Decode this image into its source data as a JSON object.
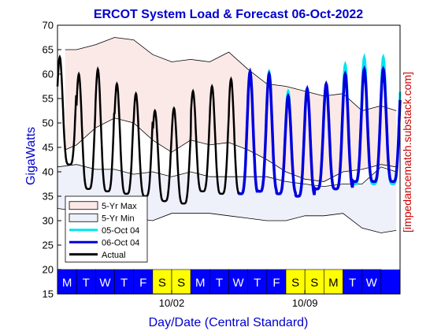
{
  "chart_data": {
    "type": "line",
    "title": "ERCOT System Load & Forecast 06-Oct-2022",
    "xlabel": "Day/Date (Central Standard)",
    "ylabel": "GigaWatts",
    "side_label": "[impedancematch.substack.com]",
    "ylim": [
      15,
      70
    ],
    "yticks": [
      "15",
      "20",
      "25",
      "30",
      "35",
      "40",
      "45",
      "50",
      "55",
      "60",
      "65",
      "70"
    ],
    "xlim_days": [
      0,
      18
    ],
    "date_ticks": [
      {
        "label": "10/02",
        "day": 6
      },
      {
        "label": "10/09",
        "day": 13
      }
    ],
    "day_strip": {
      "range": [
        15,
        20
      ],
      "colors": {
        "weekday": "#0000ff",
        "weekend": "#ffff00"
      },
      "days": [
        {
          "label": "M",
          "type": "weekday"
        },
        {
          "label": "T",
          "type": "weekday"
        },
        {
          "label": "W",
          "type": "weekday"
        },
        {
          "label": "T",
          "type": "weekday"
        },
        {
          "label": "F",
          "type": "weekday"
        },
        {
          "label": "S",
          "type": "weekend"
        },
        {
          "label": "S",
          "type": "weekend"
        },
        {
          "label": "M",
          "type": "weekday"
        },
        {
          "label": "T",
          "type": "weekday"
        },
        {
          "label": "W",
          "type": "weekday"
        },
        {
          "label": "T",
          "type": "weekday"
        },
        {
          "label": "F",
          "type": "weekday"
        },
        {
          "label": "S",
          "type": "weekend"
        },
        {
          "label": "S",
          "type": "weekend"
        },
        {
          "label": "M",
          "type": "weekend"
        },
        {
          "label": "T",
          "type": "weekday"
        },
        {
          "label": "W",
          "type": "weekday"
        }
      ]
    },
    "legend": {
      "placement": "lower-left",
      "entries": [
        {
          "label": "5-Yr Max",
          "kind": "patch",
          "key": "max"
        },
        {
          "label": "5-Yr Min",
          "kind": "patch",
          "key": "min"
        },
        {
          "label": "05-Oct 04",
          "kind": "line",
          "key": "fc1"
        },
        {
          "label": "06-Oct 04",
          "kind": "line",
          "key": "fc2"
        },
        {
          "label": "Actual",
          "kind": "line",
          "key": "actual"
        }
      ]
    },
    "colors": {
      "max_fill": "#fbe9e8",
      "min_fill": "#eef0fa",
      "band_edge": "#000000",
      "actual": "#000000",
      "forecast_05oct": "#00e5ee",
      "forecast_06oct": "#0000dd",
      "title": "#0000cc",
      "axis_label": "#0000cc",
      "side_label": "#cc0000"
    },
    "envelope_max": {
      "days": [
        0.4,
        1,
        2,
        3,
        4,
        5,
        6,
        7,
        8,
        9,
        10,
        11,
        12,
        13,
        14,
        15,
        16,
        17,
        17.8
      ],
      "values": [
        65,
        65,
        66,
        67.5,
        67,
        64,
        62.5,
        63,
        62.5,
        64.5,
        61,
        58,
        57.5,
        56.5,
        55.5,
        56,
        52.5,
        53.5,
        52.5
      ]
    },
    "envelope_upper_min": {
      "days": [
        0.4,
        1,
        2,
        3,
        4,
        5,
        6,
        7,
        8,
        9,
        10,
        11,
        12,
        13,
        14,
        15,
        16,
        17,
        17.8
      ],
      "values": [
        44.5,
        45.5,
        49,
        51,
        50,
        46.5,
        44,
        46.5,
        45.5,
        46,
        44.5,
        42.5,
        40,
        38.5,
        38,
        40,
        40.5,
        41.5,
        41
      ]
    },
    "envelope_lower_max": {
      "days": [
        0,
        1,
        2,
        3,
        4,
        5,
        6,
        7,
        8,
        9,
        10,
        11,
        12,
        13,
        14,
        15,
        16,
        17,
        17.8
      ],
      "values": [
        41,
        41.5,
        40.5,
        40.5,
        39.5,
        40,
        39,
        40,
        39,
        39,
        39,
        39,
        38,
        37.5,
        37,
        37.5,
        37.5,
        41,
        40
      ]
    },
    "envelope_min": {
      "days": [
        0,
        1,
        2,
        3,
        4,
        5,
        6,
        7,
        8,
        9,
        10,
        11,
        12,
        13,
        14,
        15,
        16,
        17,
        17.8
      ],
      "values": [
        32.5,
        32,
        31.5,
        31,
        30.5,
        30,
        31.5,
        31.5,
        31.5,
        31,
        30.5,
        30,
        30,
        31,
        31,
        31.5,
        28.5,
        27.5,
        28
      ]
    },
    "actual": {
      "start_day": 0,
      "end_day": 9.55,
      "daily_peak": [
        63.5,
        60,
        61,
        58,
        56,
        52.5,
        53,
        56.5,
        57.5,
        59
      ],
      "daily_trough": [
        41.5,
        36.5,
        36,
        35.5,
        35,
        34,
        33.5,
        36,
        35.5,
        35.5
      ]
    },
    "forecast_05oct": {
      "start_day": 9.5,
      "end_day": 18,
      "daily_peak": [
        60.5,
        60.5,
        56.5,
        57,
        57,
        62,
        63.5
      ],
      "daily_trough": [
        35.5,
        36,
        35.5,
        35,
        36.5,
        36.5,
        37.5
      ]
    },
    "forecast_06oct": {
      "start_day": 9.5,
      "end_day": 18,
      "daily_peak": [
        60.5,
        60,
        55.5,
        57,
        58,
        60,
        61
      ],
      "daily_trough": [
        35.5,
        36,
        35.5,
        35,
        36.5,
        36.5,
        38
      ]
    }
  }
}
